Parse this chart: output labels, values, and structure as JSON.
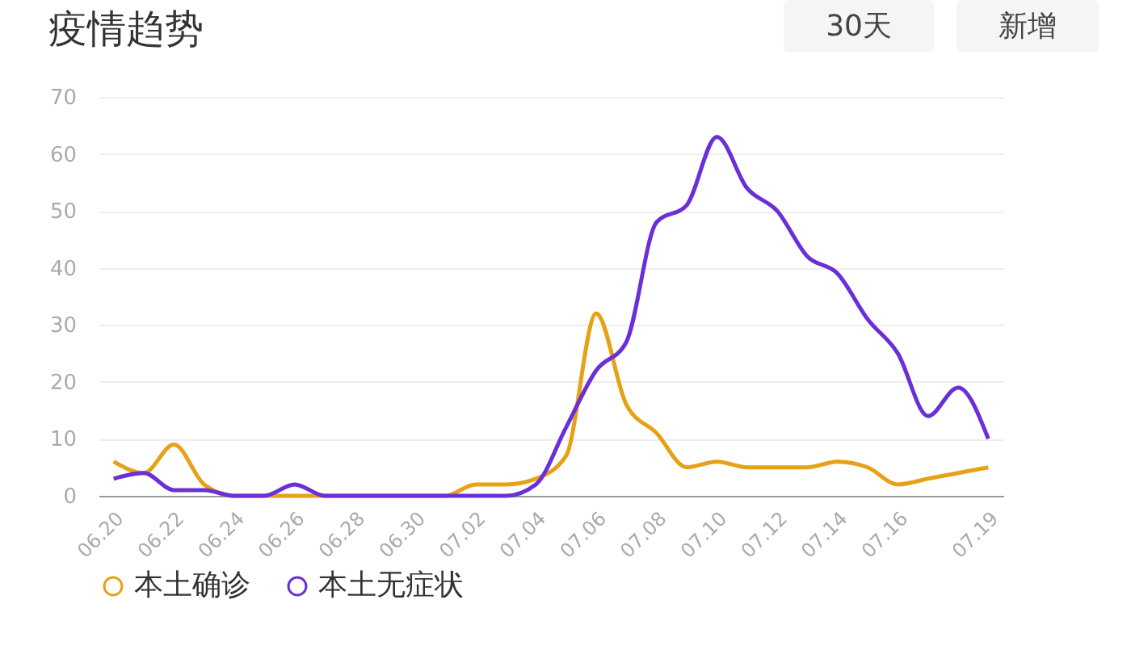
{
  "chart_data": {
    "type": "line",
    "title": "疫情趋势",
    "annotations": [
      "30天",
      "新增"
    ],
    "categories": [
      "06.20",
      null,
      "06.22",
      null,
      "06.24",
      null,
      "06.26",
      null,
      "06.28",
      null,
      "06.30",
      null,
      "07.02",
      null,
      "07.04",
      null,
      "07.06",
      null,
      "07.08",
      null,
      "07.10",
      null,
      "07.12",
      null,
      "07.14",
      null,
      "07.16",
      null,
      null,
      "07.19"
    ],
    "series": [
      {
        "name": "本土确诊",
        "color": "#e6a117",
        "values": [
          6,
          4,
          9,
          2,
          0,
          0,
          0,
          0,
          0,
          0,
          0,
          0,
          2,
          2,
          3,
          7,
          32,
          16,
          11,
          5,
          6,
          5,
          5,
          5,
          6,
          5,
          2,
          3,
          4,
          5
        ]
      },
      {
        "name": "本土无症状",
        "color": "#6a2fd6",
        "values": [
          3,
          4,
          1,
          1,
          0,
          0,
          2,
          0,
          0,
          0,
          0,
          0,
          0,
          0,
          2,
          12,
          22,
          27,
          48,
          51,
          63,
          54,
          50,
          42,
          39,
          31,
          25,
          14,
          19,
          10
        ]
      }
    ],
    "ylim": [
      0,
      70
    ],
    "yticks": [
      0,
      10,
      20,
      30,
      40,
      50,
      60,
      70
    ],
    "grid": "y",
    "legend": "bottom",
    "marker": "none",
    "line_style": "solid"
  }
}
